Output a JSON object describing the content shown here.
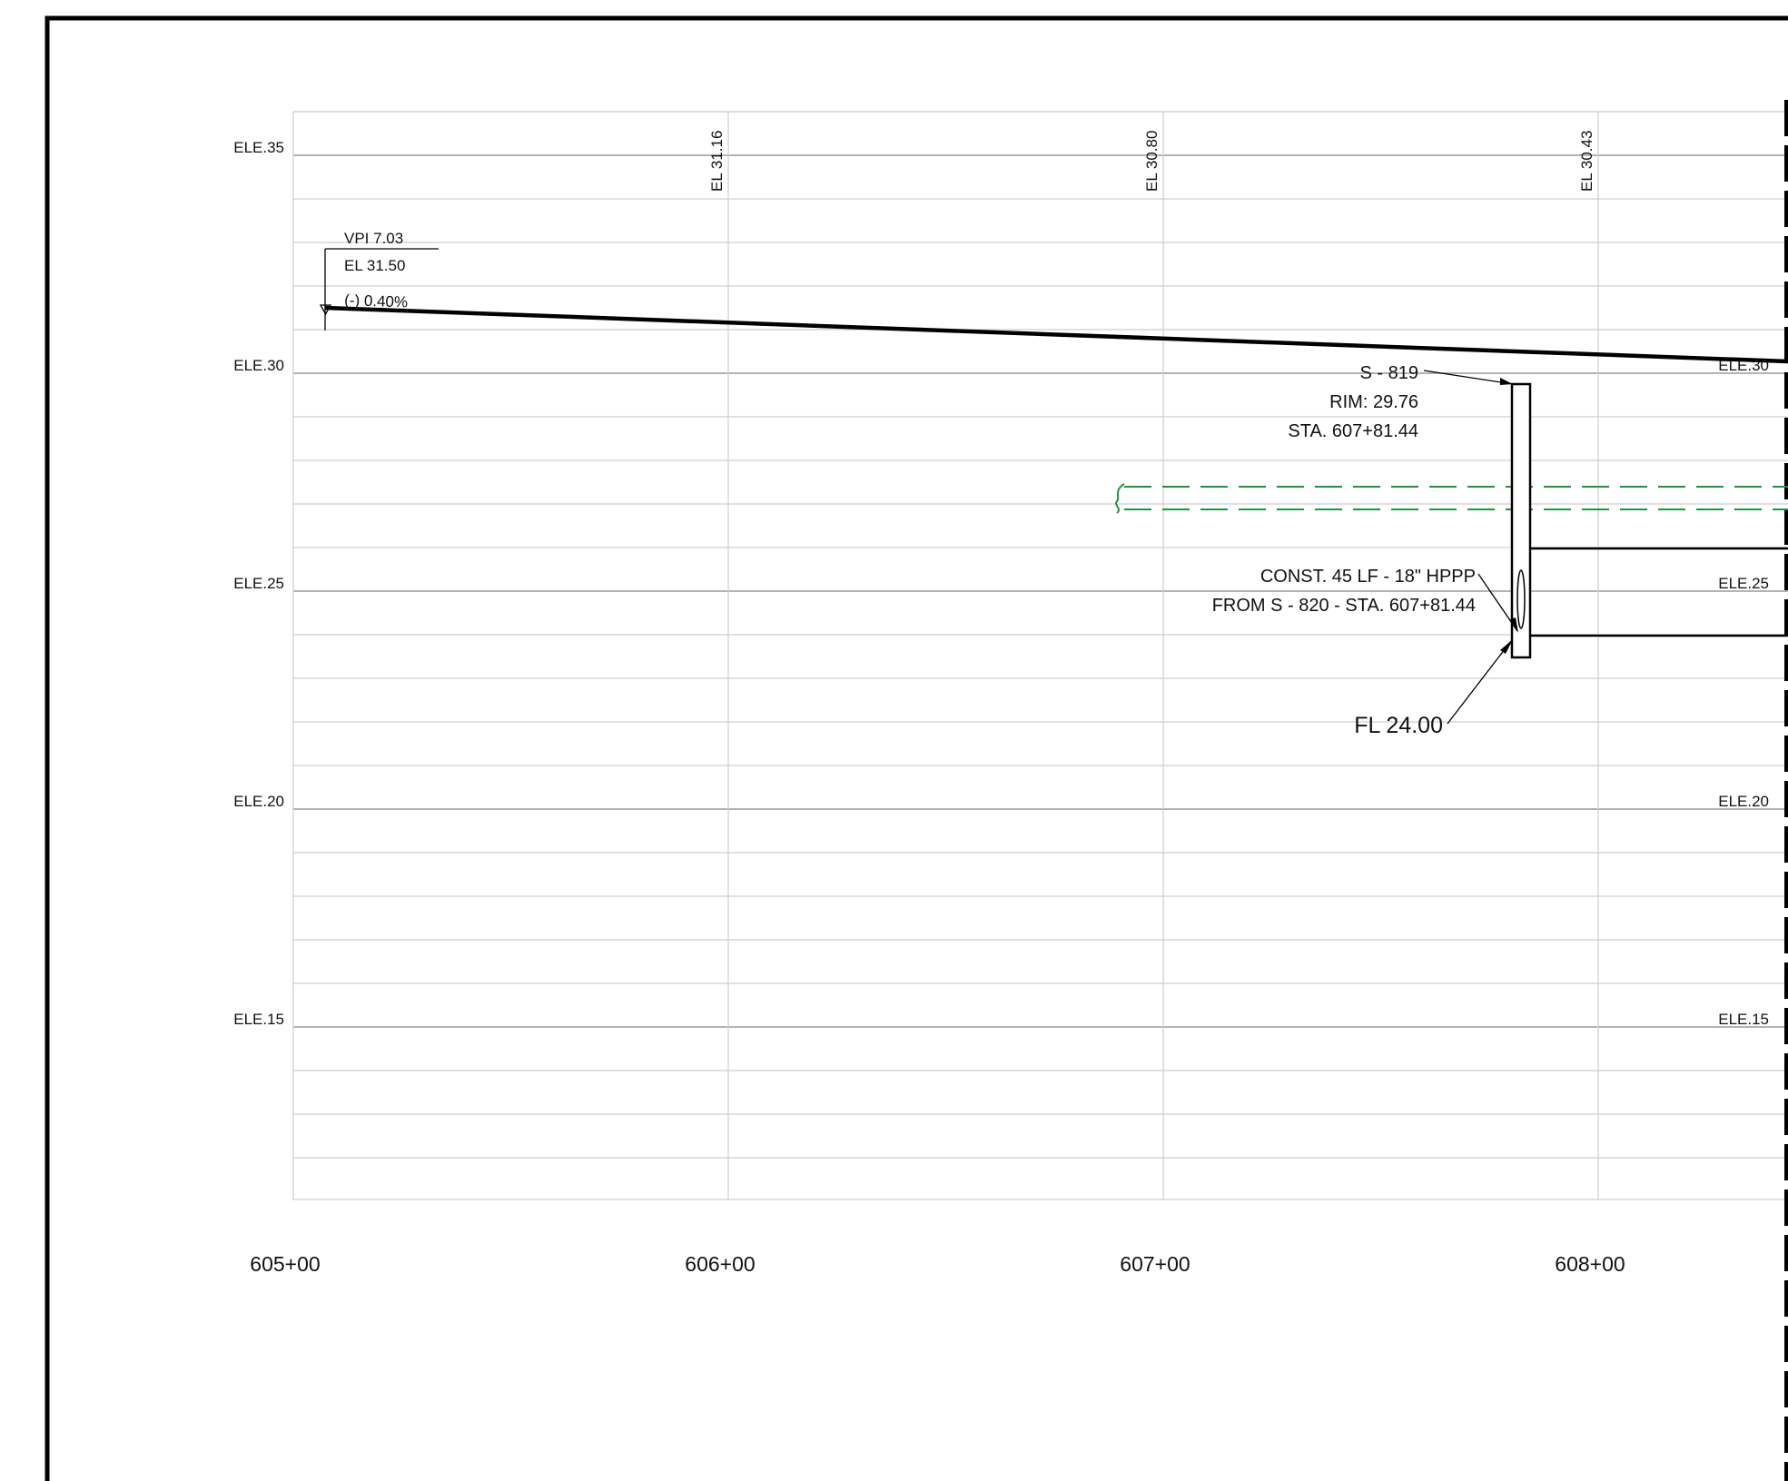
{
  "elevation_labels_left": [
    {
      "text": "ELE.35",
      "elev": 35
    },
    {
      "text": "ELE.30",
      "elev": 30
    },
    {
      "text": "ELE.25",
      "elev": 25
    },
    {
      "text": "ELE.20",
      "elev": 20
    },
    {
      "text": "ELE.15",
      "elev": 15
    }
  ],
  "elevation_labels_right": [
    {
      "text": "ELE.30",
      "elev": 30
    },
    {
      "text": "ELE.25",
      "elev": 25
    },
    {
      "text": "ELE.20",
      "elev": 20
    },
    {
      "text": "ELE.15",
      "elev": 15
    }
  ],
  "station_labels": [
    {
      "text": "605+00",
      "sta": 605
    },
    {
      "text": "606+00",
      "sta": 606
    },
    {
      "text": "607+00",
      "sta": 607
    },
    {
      "text": "608+00",
      "sta": 608
    }
  ],
  "grade_elevation_labels": [
    {
      "text": "EL 31.16",
      "sta": 606
    },
    {
      "text": "EL 30.80",
      "sta": 607
    },
    {
      "text": "EL 30.43",
      "sta": 608
    }
  ],
  "vpi": {
    "line1": "VPI 7.03",
    "line2": "EL 31.50",
    "line3": "(-) 0.40%"
  },
  "structure": {
    "name": "S - 819",
    "rim": "RIM: 29.76",
    "station": "STA. 607+81.44"
  },
  "pipe_note": {
    "line1": "CONST. 45 LF - 18\" HPPP",
    "line2": "FROM S - 820 - STA. 607+81.44"
  },
  "flowline": "FL 24.00",
  "colors": {
    "existing_utility": "#1a9641",
    "grid_major": "#9a9a9a",
    "grid_minor": "#cfcfcf",
    "profile": "#000000"
  }
}
